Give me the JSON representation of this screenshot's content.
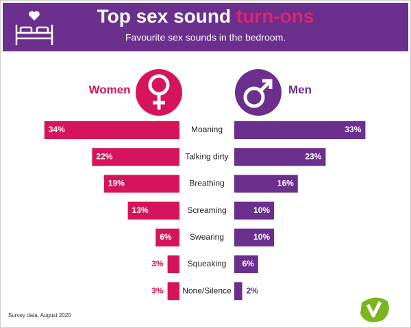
{
  "chart_data": {
    "type": "butterfly",
    "title": "Top sex sound",
    "title_highlight": "turn-ons",
    "subtitle": "Favourite sex sounds in the bedroom.",
    "categories": [
      "Moaning",
      "Talking dirty",
      "Breathing",
      "Screaming",
      "Swearing",
      "Squeaking",
      "None/Silence"
    ],
    "series": [
      {
        "name": "Women",
        "color": "#d6145c",
        "values": [
          34,
          22,
          19,
          13,
          6,
          3,
          3
        ],
        "value_labels": [
          "34%",
          "22%",
          "19%",
          "13%",
          "6%",
          "3%",
          "3%"
        ]
      },
      {
        "name": "Men",
        "color": "#6b2f8e",
        "values": [
          33,
          23,
          16,
          10,
          10,
          6,
          2
        ],
        "value_labels": [
          "33%",
          "23%",
          "16%",
          "10%",
          "10%",
          "6%",
          "2%"
        ]
      }
    ],
    "footnote": "Survey data, August 2020"
  }
}
